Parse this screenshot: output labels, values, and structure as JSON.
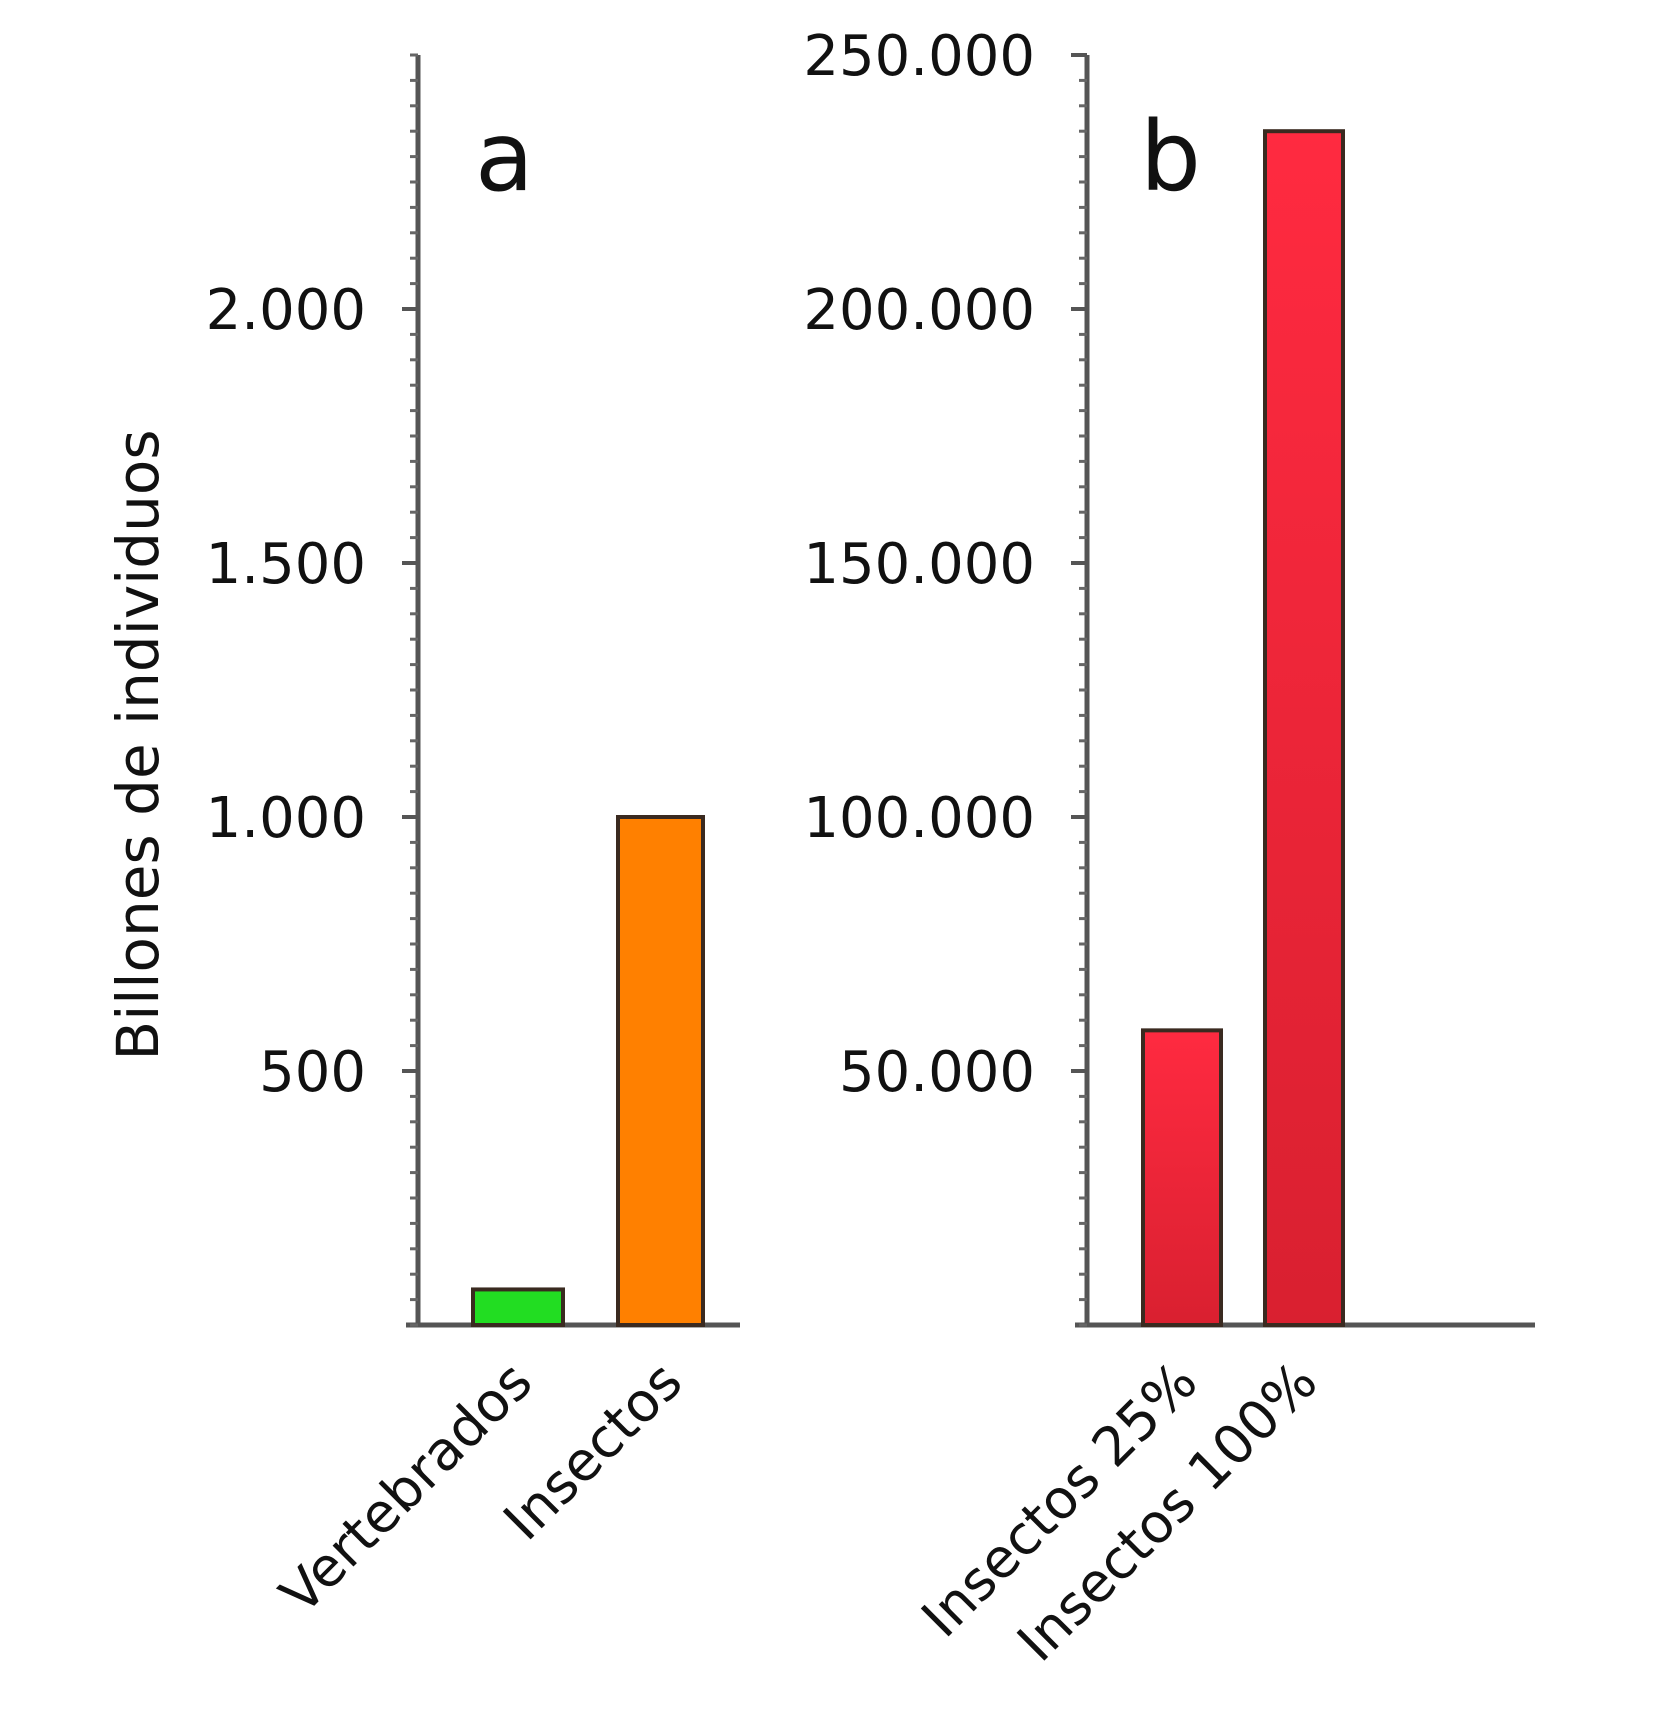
{
  "chart_data": [
    {
      "type": "bar",
      "panel_label": "a",
      "ylabel": "Billones de individuos",
      "categories": [
        "Vertebrados",
        "Insectos"
      ],
      "values": [
        70,
        1000
      ],
      "colors": [
        "#22dd22",
        "#ff8000"
      ],
      "ylim": [
        0,
        2500
      ],
      "yticks": [
        500,
        1000,
        1500,
        2000
      ],
      "ytick_labels": [
        "500",
        "1.000",
        "1.500",
        "2.000"
      ],
      "grid": false,
      "legend": "none"
    },
    {
      "type": "bar",
      "panel_label": "b",
      "ylabel": "",
      "categories": [
        "Insectos 25%",
        "Insectos 100%"
      ],
      "values": [
        58000,
        235000
      ],
      "colors": [
        "#e8243a",
        "#e8243a"
      ],
      "ylim": [
        0,
        250000
      ],
      "yticks": [
        50000,
        100000,
        150000,
        200000,
        250000
      ],
      "ytick_labels": [
        "50.000",
        "100.000",
        "150.000",
        "200.000",
        "250.000"
      ],
      "grid": false,
      "legend": "none"
    }
  ]
}
